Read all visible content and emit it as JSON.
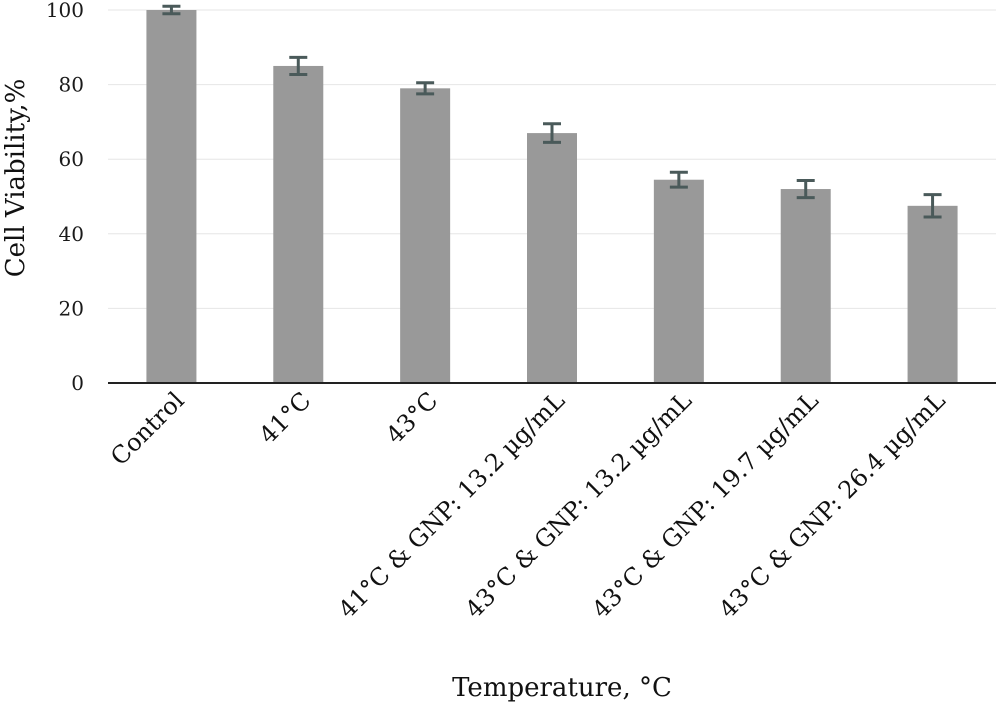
{
  "chart_data": {
    "type": "bar",
    "title": "",
    "xlabel": "Temperature, °C",
    "ylabel": "Cell Viability,%",
    "ylim": [
      0,
      100
    ],
    "yticks": [
      0,
      20,
      40,
      60,
      80,
      100
    ],
    "grid": true,
    "legend": "none",
    "bar_color": "#999999",
    "error_color": "#4a5a5a",
    "categories": [
      "Control",
      "41°C",
      "43°C",
      "41°C & GNP: 13.2 µg/mL",
      "43°C & GNP: 13.2 µg/mL",
      "43°C & GNP: 19.7 µg/mL",
      "43°C & GNP: 26.4 µg/mL"
    ],
    "values": [
      100,
      85,
      79,
      67,
      54.5,
      52,
      47.5
    ],
    "errors": [
      1,
      2.3,
      1.5,
      2.5,
      2,
      2.3,
      3
    ]
  }
}
